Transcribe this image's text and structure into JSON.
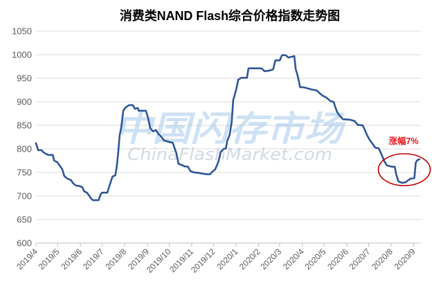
{
  "watermark": {
    "cn": "中国闪存市场",
    "en": "ChinaFlashMarket.com"
  },
  "chart_data": {
    "type": "line",
    "title": "消费类NAND Flash综合价格指数走势图",
    "xlim": [
      "2019-04-01",
      "2020-09-11"
    ],
    "ylim": [
      600,
      1050
    ],
    "y_ticks": [
      600,
      650,
      700,
      750,
      800,
      850,
      900,
      950,
      1000,
      1050
    ],
    "x_tick_labels": [
      "2019/4",
      "2019/5",
      "2019/6",
      "2019/7",
      "2019/8",
      "2019/9",
      "2019/10",
      "2019/11",
      "2019/12",
      "2020/1",
      "2020/2",
      "2020/3",
      "2020/4",
      "2020/5",
      "2020/6",
      "2020/7",
      "2020/8",
      "2020/9"
    ],
    "grid": true,
    "x": [
      "2019-04-01",
      "2019-04-04",
      "2019-04-09",
      "2019-04-11",
      "2019-04-14",
      "2019-04-18",
      "2019-04-24",
      "2019-04-26",
      "2019-04-30",
      "2019-05-03",
      "2019-05-07",
      "2019-05-10",
      "2019-05-14",
      "2019-05-19",
      "2019-05-22",
      "2019-05-26",
      "2019-05-31",
      "2019-06-04",
      "2019-06-06",
      "2019-06-10",
      "2019-06-13",
      "2019-06-15",
      "2019-06-18",
      "2019-06-26",
      "2019-06-29",
      "2019-07-01",
      "2019-07-08",
      "2019-07-11",
      "2019-07-15",
      "2019-07-19",
      "2019-07-21",
      "2019-07-23",
      "2019-07-25",
      "2019-07-27",
      "2019-07-30",
      "2019-08-02",
      "2019-08-07",
      "2019-08-12",
      "2019-08-15",
      "2019-08-19",
      "2019-08-20",
      "2019-08-30",
      "2019-09-02",
      "2019-09-05",
      "2019-09-09",
      "2019-09-13",
      "2019-09-16",
      "2019-09-20",
      "2019-09-24",
      "2019-09-30",
      "2019-10-06",
      "2019-10-08",
      "2019-10-11",
      "2019-10-14",
      "2019-10-18",
      "2019-10-22",
      "2019-10-27",
      "2019-10-30",
      "2019-11-04",
      "2019-11-11",
      "2019-11-17",
      "2019-11-23",
      "2019-11-26",
      "2019-11-29",
      "2019-12-03",
      "2019-12-06",
      "2019-12-08",
      "2019-12-11",
      "2019-12-15",
      "2019-12-18",
      "2019-12-20",
      "2019-12-23",
      "2019-12-26",
      "2019-12-28",
      "2020-01-01",
      "2020-01-04",
      "2020-01-08",
      "2020-01-16",
      "2020-01-18",
      "2020-02-05",
      "2020-02-09",
      "2020-02-15",
      "2020-02-21",
      "2020-02-24",
      "2020-03-01",
      "2020-03-04",
      "2020-03-09",
      "2020-03-13",
      "2020-03-21",
      "2020-03-23",
      "2020-03-25",
      "2020-03-27",
      "2020-03-29",
      "2020-04-02",
      "2020-04-07",
      "2020-04-14",
      "2020-04-21",
      "2020-04-25",
      "2020-04-29",
      "2020-05-04",
      "2020-05-10",
      "2020-05-14",
      "2020-05-16",
      "2020-05-19",
      "2020-05-22",
      "2020-05-27",
      "2020-06-05",
      "2020-06-12",
      "2020-06-16",
      "2020-06-23",
      "2020-06-26",
      "2020-06-29",
      "2020-07-03",
      "2020-07-07",
      "2020-07-10",
      "2020-07-15",
      "2020-07-19",
      "2020-07-22",
      "2020-07-26",
      "2020-08-02",
      "2020-08-06",
      "2020-08-08",
      "2020-08-11",
      "2020-08-16",
      "2020-08-21",
      "2020-08-25",
      "2020-08-28",
      "2020-09-02",
      "2020-09-04",
      "2020-09-06",
      "2020-09-09"
    ],
    "y": [
      812,
      797,
      797,
      793,
      790,
      787,
      787,
      775,
      772,
      766,
      757,
      742,
      737,
      734,
      727,
      722,
      721,
      718,
      710,
      707,
      701,
      696,
      691,
      691,
      704,
      707,
      707,
      722,
      741,
      744,
      763,
      793,
      830,
      844,
      881,
      888,
      893,
      893,
      885,
      887,
      881,
      881,
      866,
      844,
      837,
      840,
      832,
      826,
      818,
      815,
      813,
      804,
      790,
      768,
      766,
      763,
      762,
      753,
      750,
      749,
      747,
      746,
      746,
      751,
      756,
      766,
      775,
      794,
      800,
      801,
      818,
      829,
      857,
      903,
      925,
      947,
      951,
      951,
      971,
      971,
      965,
      966,
      969,
      988,
      988,
      999,
      999,
      994,
      997,
      969,
      959,
      946,
      931,
      931,
      929,
      926,
      924,
      918,
      913,
      909,
      901,
      900,
      890,
      878,
      871,
      863,
      862,
      859,
      851,
      850,
      840,
      829,
      818,
      810,
      803,
      801,
      788,
      776,
      765,
      762,
      762,
      746,
      731,
      728,
      729,
      734,
      737,
      738,
      771,
      776,
      778
    ],
    "annotations": [
      {
        "text": "涨幅7%"
      }
    ],
    "colors": {
      "line": "#2f5597",
      "annotation_text": "#e8141c",
      "annotation_ellipse": "#c00000"
    }
  }
}
